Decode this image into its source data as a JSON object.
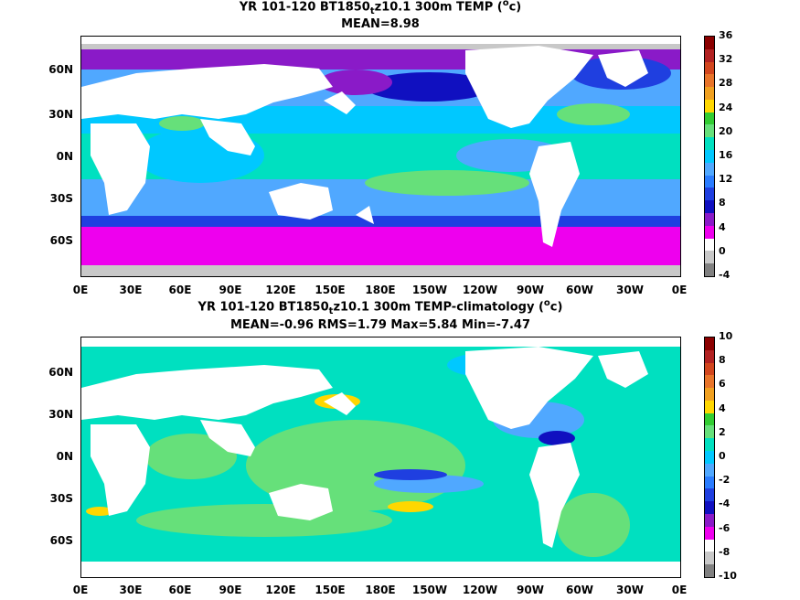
{
  "panel1": {
    "title_prefix": "YR 101-120 BT1850",
    "title_sub": "t",
    "title_suffix": "z10.1 300m TEMP (",
    "title_unit_sup": "o",
    "title_unit_end": "c)",
    "subtitle": "MEAN=8.98",
    "colorbar_labels": [
      "36",
      "32",
      "28",
      "24",
      "20",
      "16",
      "12",
      "8",
      "4",
      "0",
      "-4"
    ],
    "colorbar_colors": [
      "#8b0000",
      "#b22222",
      "#d2461e",
      "#e8742a",
      "#f0a020",
      "#ffd700",
      "#32cd32",
      "#66e07a",
      "#00e0c0",
      "#00c8ff",
      "#50a8ff",
      "#2a7cff",
      "#1f3fe0",
      "#1010c0",
      "#8a1ac8",
      "#ee00ee",
      "#ffffff",
      "#c8c8c8",
      "#808080"
    ]
  },
  "panel2": {
    "title_prefix": "YR 101-120 BT1850",
    "title_sub": "t",
    "title_suffix": "z10.1 300m TEMP-climatology (",
    "title_unit_sup": "o",
    "title_unit_end": "c)",
    "subtitle": "MEAN=-0.96   RMS=1.79   Max=5.84   Min=-7.47",
    "colorbar_labels": [
      "10",
      "8",
      "6",
      "4",
      "2",
      "0",
      "-2",
      "-4",
      "-6",
      "-8",
      "-10"
    ],
    "colorbar_colors": [
      "#8b0000",
      "#b22222",
      "#d2461e",
      "#e8742a",
      "#f0a020",
      "#ffd700",
      "#32cd32",
      "#66e07a",
      "#00e0c0",
      "#00c8ff",
      "#50a8ff",
      "#2a7cff",
      "#1f3fe0",
      "#1010c0",
      "#8a1ac8",
      "#ee00ee",
      "#ffffff",
      "#c8c8c8",
      "#808080"
    ]
  },
  "x_ticks": [
    "0E",
    "30E",
    "60E",
    "90E",
    "120E",
    "150E",
    "180E",
    "150W",
    "120W",
    "90W",
    "60W",
    "30W",
    "0E"
  ],
  "y_ticks": [
    "60N",
    "30N",
    "0N",
    "30S",
    "60S"
  ]
}
